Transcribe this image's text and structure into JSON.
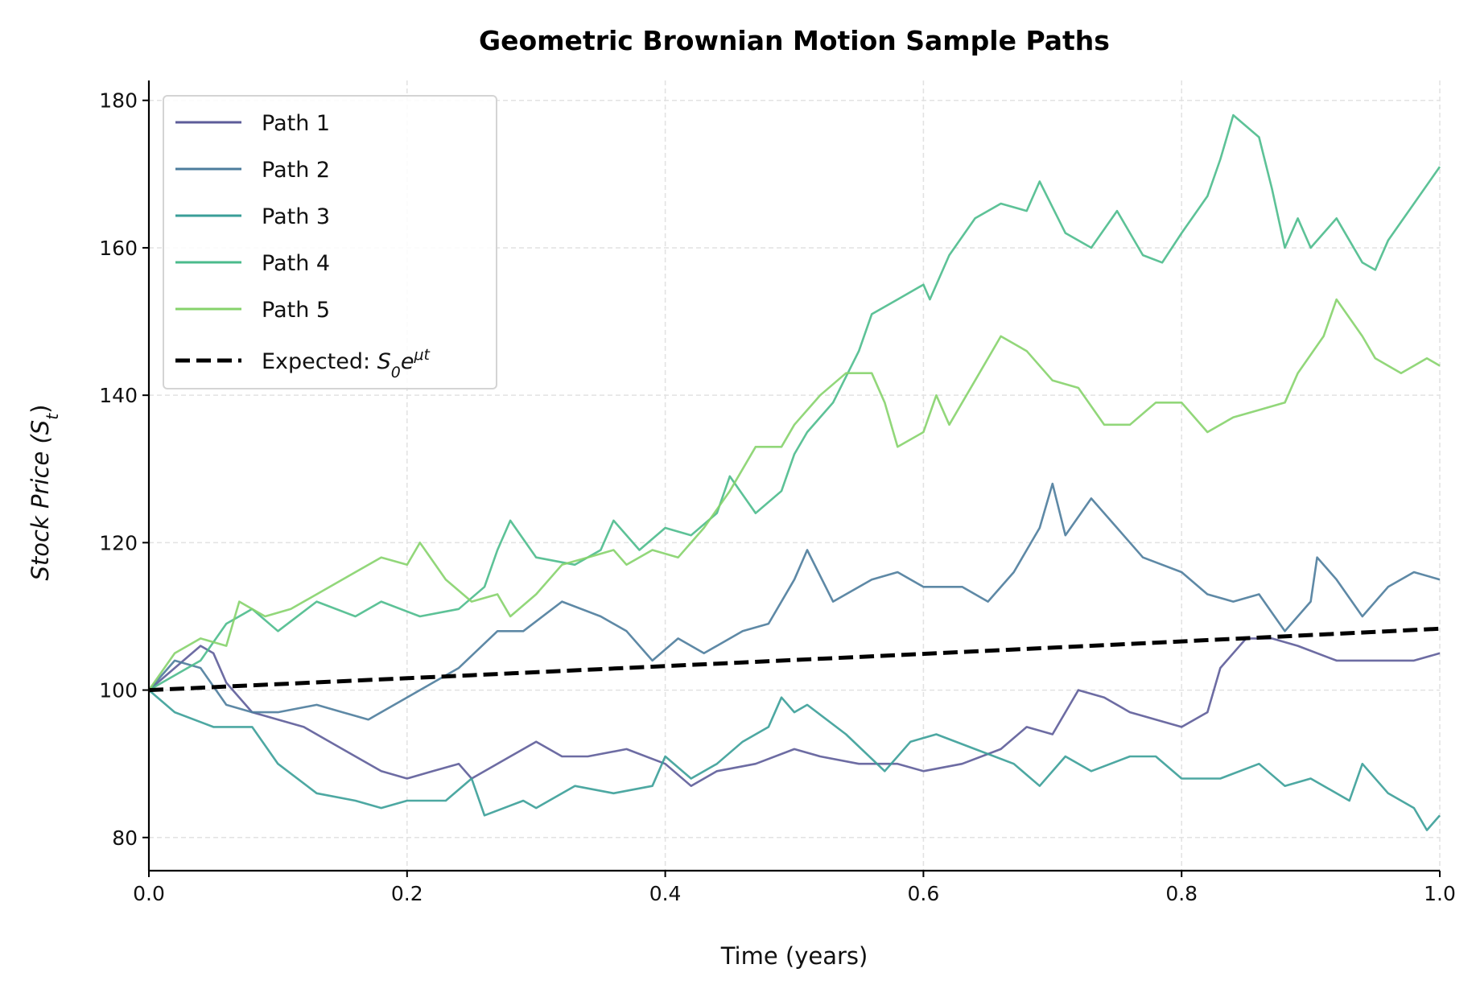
{
  "chart_data": {
    "type": "line",
    "title": "Geometric Brownian Motion Sample Paths",
    "xlabel": "Time (years)",
    "ylabel": "Stock Price (S_{t})",
    "xlim": [
      0,
      1
    ],
    "ylim": [
      75.5,
      182.7
    ],
    "xticks": [
      "0.0",
      "0.2",
      "0.4",
      "0.6",
      "0.8",
      "1.0"
    ],
    "yticks": [
      "80",
      "100",
      "120",
      "140",
      "160",
      "180"
    ],
    "grid": true,
    "legend_position": "top-left",
    "series": [
      {
        "name": "Path 1",
        "color": "#5d5c99",
        "dashed": false,
        "x": [
          0,
          0.02,
          0.04,
          0.05,
          0.06,
          0.08,
          0.1,
          0.12,
          0.14,
          0.16,
          0.18,
          0.2,
          0.22,
          0.24,
          0.25,
          0.28,
          0.3,
          0.32,
          0.34,
          0.37,
          0.4,
          0.42,
          0.44,
          0.47,
          0.5,
          0.52,
          0.55,
          0.58,
          0.6,
          0.63,
          0.66,
          0.68,
          0.7,
          0.72,
          0.74,
          0.76,
          0.78,
          0.8,
          0.82,
          0.83,
          0.85,
          0.87,
          0.89,
          0.92,
          0.95,
          0.98,
          1.0
        ],
        "y": [
          100,
          103,
          106,
          105,
          101,
          97,
          96,
          95,
          93,
          91,
          89,
          88,
          89,
          90,
          88,
          91,
          93,
          91,
          91,
          92,
          90,
          87,
          89,
          90,
          92,
          91,
          90,
          90,
          89,
          90,
          92,
          95,
          94,
          100,
          99,
          97,
          96,
          95,
          97,
          103,
          107,
          107,
          106,
          104,
          104,
          104,
          105
        ]
      },
      {
        "name": "Path 2",
        "color": "#4c7c9c",
        "dashed": false,
        "x": [
          0,
          0.02,
          0.04,
          0.06,
          0.08,
          0.1,
          0.13,
          0.15,
          0.17,
          0.2,
          0.22,
          0.24,
          0.27,
          0.29,
          0.32,
          0.35,
          0.37,
          0.39,
          0.41,
          0.43,
          0.46,
          0.48,
          0.5,
          0.51,
          0.53,
          0.56,
          0.58,
          0.6,
          0.63,
          0.65,
          0.67,
          0.69,
          0.7,
          0.71,
          0.73,
          0.75,
          0.77,
          0.8,
          0.82,
          0.84,
          0.86,
          0.88,
          0.9,
          0.905,
          0.92,
          0.94,
          0.96,
          0.98,
          1.0
        ],
        "y": [
          100,
          104,
          103,
          98,
          97,
          97,
          98,
          97,
          96,
          99,
          101,
          103,
          108,
          108,
          112,
          110,
          108,
          104,
          107,
          105,
          108,
          109,
          115,
          119,
          112,
          115,
          116,
          114,
          114,
          112,
          116,
          122,
          128,
          121,
          126,
          122,
          118,
          116,
          113,
          112,
          113,
          108,
          112,
          118,
          115,
          110,
          114,
          116,
          115
        ]
      },
      {
        "name": "Path 3",
        "color": "#3a9e98",
        "dashed": false,
        "x": [
          0,
          0.02,
          0.05,
          0.08,
          0.1,
          0.13,
          0.16,
          0.18,
          0.2,
          0.23,
          0.25,
          0.26,
          0.29,
          0.3,
          0.33,
          0.36,
          0.39,
          0.4,
          0.42,
          0.44,
          0.46,
          0.48,
          0.49,
          0.5,
          0.51,
          0.54,
          0.57,
          0.59,
          0.61,
          0.64,
          0.67,
          0.69,
          0.71,
          0.73,
          0.76,
          0.78,
          0.8,
          0.83,
          0.86,
          0.88,
          0.9,
          0.93,
          0.94,
          0.96,
          0.98,
          0.99,
          1.0
        ],
        "y": [
          100,
          97,
          95,
          95,
          90,
          86,
          85,
          84,
          85,
          85,
          88,
          83,
          85,
          84,
          87,
          86,
          87,
          91,
          88,
          90,
          93,
          95,
          99,
          97,
          98,
          94,
          89,
          93,
          94,
          92,
          90,
          87,
          91,
          89,
          91,
          91,
          88,
          88,
          90,
          87,
          88,
          85,
          90,
          86,
          84,
          81,
          83
        ]
      },
      {
        "name": "Path 4",
        "color": "#4bbb8c",
        "dashed": false,
        "x": [
          0,
          0.04,
          0.06,
          0.08,
          0.1,
          0.13,
          0.16,
          0.18,
          0.21,
          0.24,
          0.26,
          0.27,
          0.28,
          0.3,
          0.33,
          0.35,
          0.36,
          0.38,
          0.4,
          0.42,
          0.44,
          0.45,
          0.47,
          0.49,
          0.5,
          0.51,
          0.53,
          0.55,
          0.56,
          0.58,
          0.6,
          0.605,
          0.62,
          0.64,
          0.66,
          0.68,
          0.69,
          0.71,
          0.73,
          0.75,
          0.77,
          0.785,
          0.8,
          0.82,
          0.83,
          0.84,
          0.86,
          0.87,
          0.88,
          0.89,
          0.9,
          0.92,
          0.94,
          0.95,
          0.96,
          0.98,
          1.0
        ],
        "y": [
          100,
          104,
          109,
          111,
          108,
          112,
          110,
          112,
          110,
          111,
          114,
          119,
          123,
          118,
          117,
          119,
          123,
          119,
          122,
          121,
          124,
          129,
          124,
          127,
          132,
          135,
          139,
          146,
          151,
          153,
          155,
          153,
          159,
          164,
          166,
          165,
          169,
          162,
          160,
          165,
          159,
          158,
          162,
          167,
          172,
          178,
          175,
          168,
          160,
          164,
          160,
          164,
          158,
          157,
          161,
          166,
          171
        ]
      },
      {
        "name": "Path 5",
        "color": "#86d36b",
        "dashed": false,
        "x": [
          0,
          0.02,
          0.04,
          0.06,
          0.07,
          0.09,
          0.11,
          0.13,
          0.16,
          0.18,
          0.2,
          0.21,
          0.23,
          0.25,
          0.27,
          0.28,
          0.3,
          0.32,
          0.34,
          0.36,
          0.37,
          0.39,
          0.41,
          0.43,
          0.45,
          0.47,
          0.49,
          0.5,
          0.52,
          0.54,
          0.56,
          0.57,
          0.58,
          0.6,
          0.61,
          0.62,
          0.64,
          0.66,
          0.68,
          0.7,
          0.72,
          0.74,
          0.76,
          0.78,
          0.8,
          0.82,
          0.84,
          0.86,
          0.88,
          0.89,
          0.91,
          0.92,
          0.94,
          0.95,
          0.97,
          0.99,
          1.0
        ],
        "y": [
          100,
          105,
          107,
          106,
          112,
          110,
          111,
          113,
          116,
          118,
          117,
          120,
          115,
          112,
          113,
          110,
          113,
          117,
          118,
          119,
          117,
          119,
          118,
          122,
          127,
          133,
          133,
          136,
          140,
          143,
          143,
          139,
          133,
          135,
          140,
          136,
          142,
          148,
          146,
          142,
          141,
          136,
          136,
          139,
          139,
          135,
          137,
          138,
          139,
          143,
          148,
          153,
          148,
          145,
          143,
          145,
          144
        ]
      },
      {
        "name": "Expected: S_{0}e^{μt}",
        "color": "#000000",
        "dashed": true,
        "x": [
          0,
          0.25,
          0.5,
          0.75,
          1.0
        ],
        "y": [
          100,
          102.02,
          104.08,
          106.18,
          108.33
        ]
      }
    ]
  }
}
